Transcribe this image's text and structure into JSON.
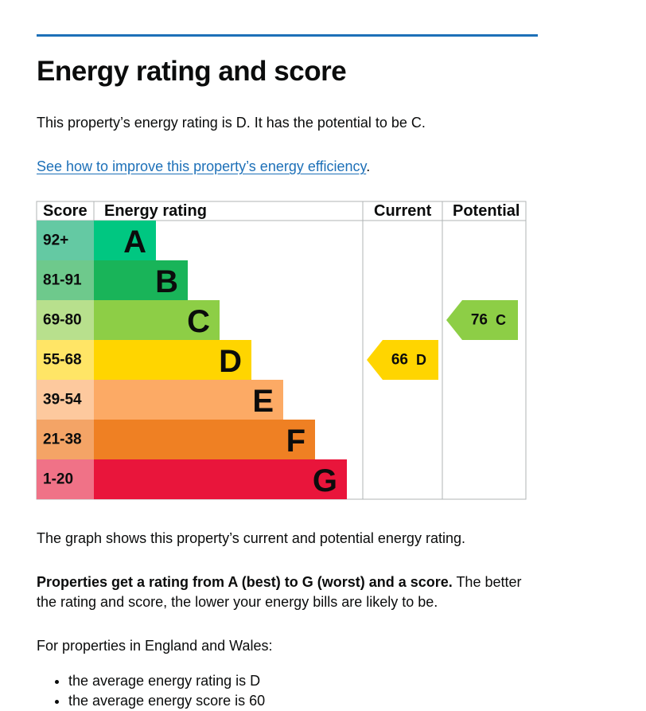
{
  "header": {
    "title": "Energy rating and score"
  },
  "summary": "This property’s energy rating is D. It has the potential to be C.",
  "link": {
    "text": "See how to improve this property’s energy efficiency",
    "suffix": "."
  },
  "rating_graph": {
    "headers": [
      "Score",
      "Energy rating",
      "Current",
      "Potential"
    ],
    "bands": [
      {
        "score": "92+",
        "letter": "A"
      },
      {
        "score": "81-91",
        "letter": "B"
      },
      {
        "score": "69-80",
        "letter": "C"
      },
      {
        "score": "55-68",
        "letter": "D"
      },
      {
        "score": "39-54",
        "letter": "E"
      },
      {
        "score": "21-38",
        "letter": "F"
      },
      {
        "score": "1-20",
        "letter": "G"
      }
    ],
    "current": {
      "score": 66,
      "letter": "D"
    },
    "potential": {
      "score": 76,
      "letter": "C"
    }
  },
  "graph_note": "The graph shows this property’s current and potential energy rating.",
  "explanation": {
    "bold": "Properties get a rating from A (best) to G (worst) and a score.",
    "text": "The better the rating and score, the lower your energy bills are likely to be."
  },
  "regional": {
    "intro": "For properties in England and Wales:",
    "bullets": [
      "the average energy rating is D",
      "the average energy score is 60"
    ]
  }
}
